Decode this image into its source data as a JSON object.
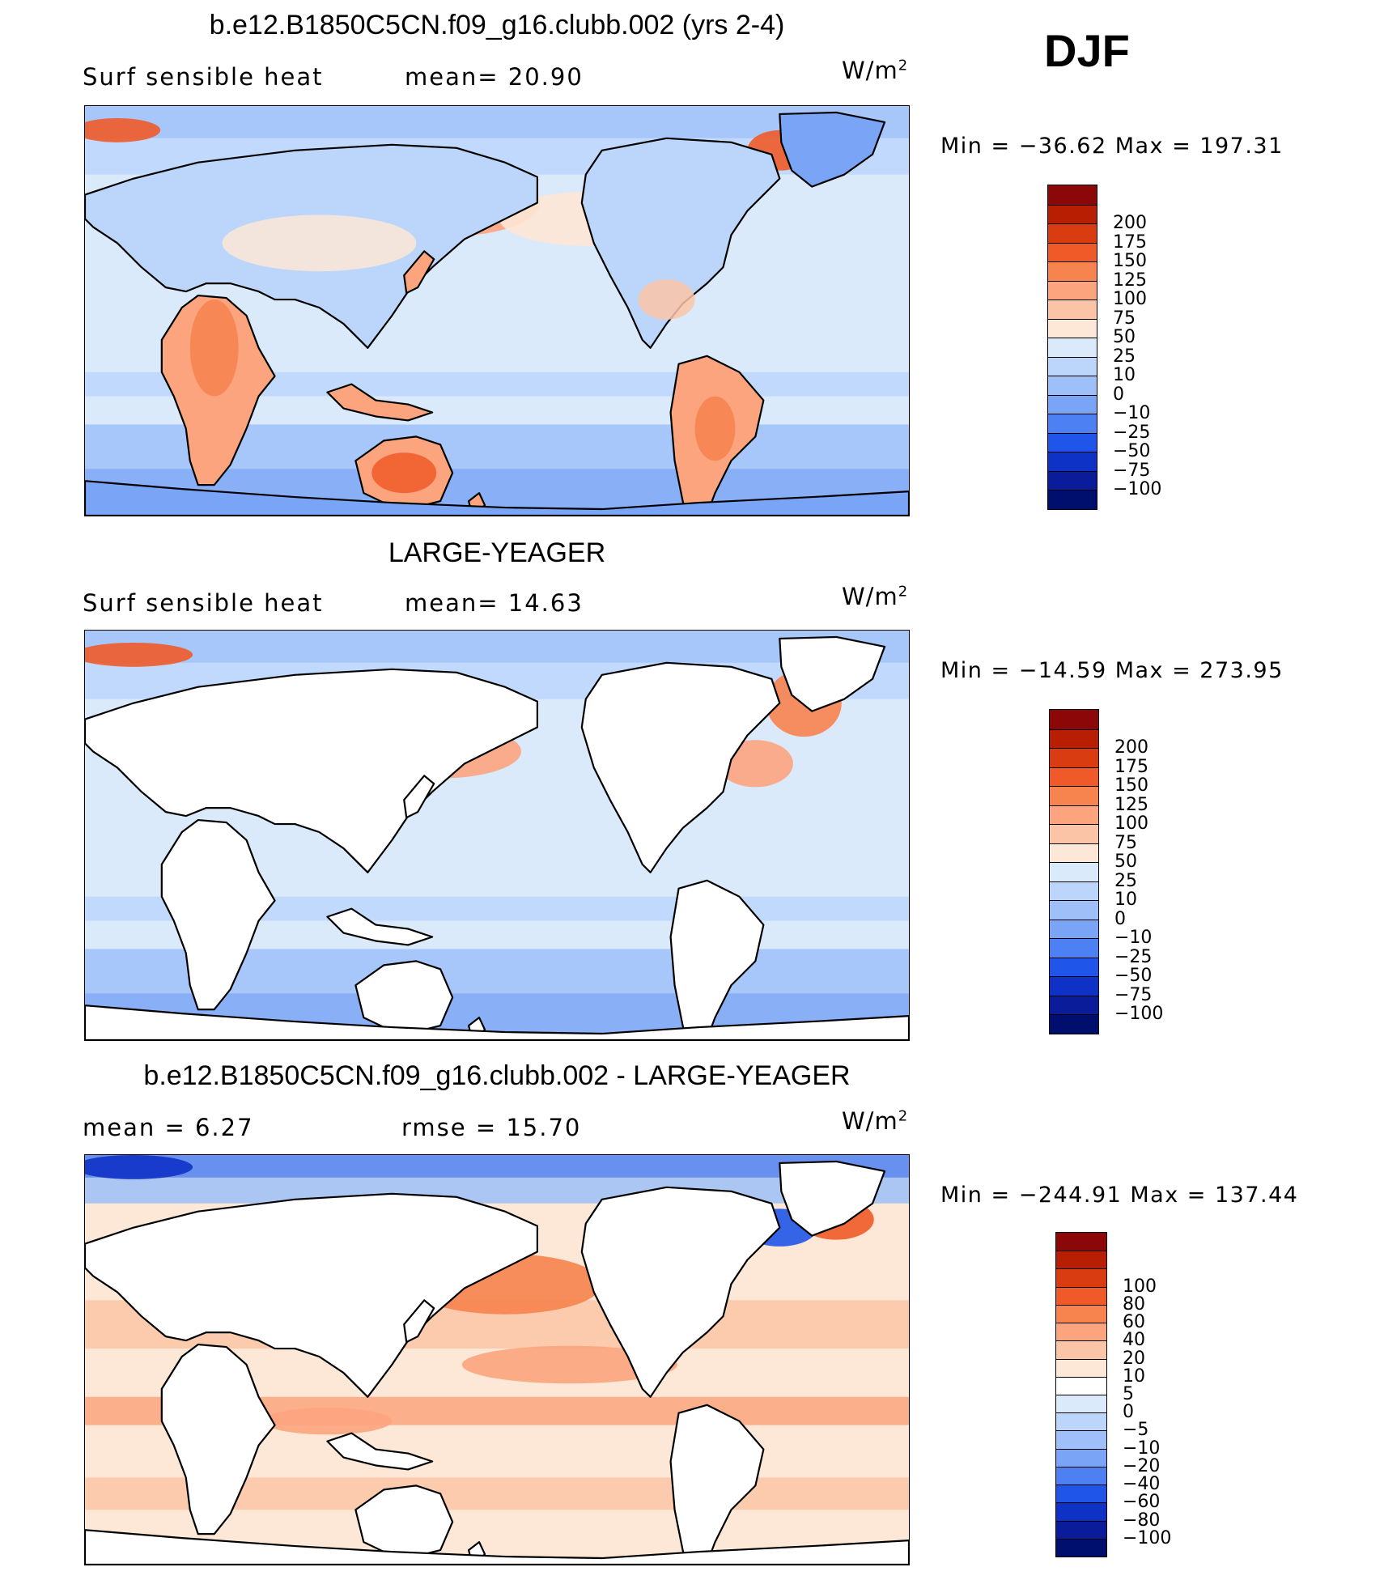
{
  "season": "DJF",
  "palettes": {
    "main": [
      "#8c0707",
      "#b81e02",
      "#d93c10",
      "#f05a28",
      "#f7834f",
      "#fca47e",
      "#fcc4a6",
      "#fde7d6",
      "#dbeafb",
      "#bcd6fb",
      "#9ebff8",
      "#7aa4f6",
      "#4d80f2",
      "#1f55e8",
      "#0f32c6",
      "#0b1c9a",
      "#000e6e"
    ],
    "diff": [
      "#8c0707",
      "#b81e02",
      "#d93c10",
      "#f05a28",
      "#f7834f",
      "#fca47e",
      "#fcc4a6",
      "#fde7d6",
      "#ffffff",
      "#dbeafb",
      "#bcd6fb",
      "#9ebff8",
      "#7aa4f6",
      "#4d80f2",
      "#1f55e8",
      "#0f32c6",
      "#0b1c9a",
      "#000e6e"
    ],
    "land_white": "#ffffff"
  },
  "panels": [
    {
      "title": "b.e12.B1850C5CN.f09_g16.clubb.002 (yrs 2-4)",
      "stat_left": "Surf  sensible  heat",
      "stat_right": "mean=   20.90",
      "units_base": "W/m",
      "units_exp": "2",
      "minmax": "Min  =  −36.62  Max  =  197.31",
      "colorbar_labels": [
        "200",
        "175",
        "150",
        "125",
        "100",
        "75",
        "50",
        "25",
        "10",
        "0",
        "−10",
        "−25",
        "−50",
        "−75",
        "−100"
      ]
    },
    {
      "title": "LARGE-YEAGER",
      "stat_left": "Surf  sensible  heat",
      "stat_right": "mean=   14.63",
      "units_base": "W/m",
      "units_exp": "2",
      "minmax": "Min  =  −14.59  Max  =  273.95",
      "colorbar_labels": [
        "200",
        "175",
        "150",
        "125",
        "100",
        "75",
        "50",
        "25",
        "10",
        "0",
        "−10",
        "−25",
        "−50",
        "−75",
        "−100"
      ]
    },
    {
      "title": "b.e12.B1850C5CN.f09_g16.clubb.002 - LARGE-YEAGER",
      "stat_left": "mean  =      6.27",
      "stat_right": "rmse  =     15.70",
      "units_base": "W/m",
      "units_exp": "2",
      "minmax": "Min  =  −244.91  Max  =  137.44",
      "colorbar_labels": [
        "100",
        "80",
        "60",
        "40",
        "20",
        "10",
        "5",
        "0",
        "−5",
        "−10",
        "−20",
        "−40",
        "−60",
        "−80",
        "−100"
      ]
    }
  ]
}
